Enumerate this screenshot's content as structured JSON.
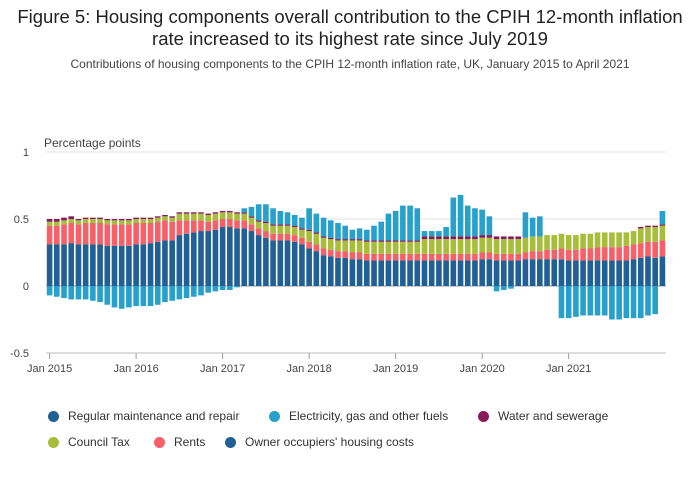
{
  "title": "Figure 5: Housing components overall contribution to the CPIH 12-month inflation rate increased to its highest rate since July 2019",
  "subtitle": "Contributions of housing components to the CPIH 12-month inflation rate, UK, January 2015 to April 2021",
  "chart_data": {
    "type": "bar",
    "stacked": true,
    "ylabel": "Percentage points",
    "ylim": [
      -0.5,
      1
    ],
    "yticks": [
      "1",
      "0.5",
      "0",
      "-0.5"
    ],
    "xtick_labels": [
      "Jan 2015",
      "Jan 2016",
      "Jan 2017",
      "Jan 2018",
      "Jan 2019",
      "Jan 2020",
      "Jan 2021"
    ],
    "period_start": "2015-01",
    "period_end": "2021-04",
    "grid": true,
    "legend_position": "bottom",
    "series": [
      {
        "name": "Owner occupiers' housing costs",
        "color": "#206095",
        "values": [
          0.31,
          0.31,
          0.31,
          0.32,
          0.31,
          0.31,
          0.31,
          0.31,
          0.3,
          0.3,
          0.3,
          0.3,
          0.31,
          0.31,
          0.32,
          0.33,
          0.34,
          0.34,
          0.38,
          0.39,
          0.4,
          0.41,
          0.41,
          0.42,
          0.44,
          0.44,
          0.43,
          0.43,
          0.41,
          0.38,
          0.36,
          0.34,
          0.34,
          0.34,
          0.33,
          0.31,
          0.28,
          0.26,
          0.23,
          0.22,
          0.21,
          0.21,
          0.2,
          0.2,
          0.19,
          0.19,
          0.19,
          0.19,
          0.19,
          0.19,
          0.19,
          0.19,
          0.19,
          0.19,
          0.19,
          0.19,
          0.19,
          0.19,
          0.19,
          0.19,
          0.2,
          0.2,
          0.19,
          0.19,
          0.19,
          0.19,
          0.2,
          0.2,
          0.2,
          0.2,
          0.2,
          0.2,
          0.19,
          0.19,
          0.19,
          0.19,
          0.19,
          0.19,
          0.19,
          0.19,
          0.19,
          0.2,
          0.21,
          0.22,
          0.21,
          0.22
        ]
      },
      {
        "name": "Rents",
        "color": "#f66068",
        "values": [
          0.14,
          0.14,
          0.15,
          0.15,
          0.15,
          0.16,
          0.16,
          0.16,
          0.16,
          0.16,
          0.16,
          0.16,
          0.16,
          0.16,
          0.15,
          0.15,
          0.15,
          0.14,
          0.11,
          0.1,
          0.09,
          0.08,
          0.07,
          0.07,
          0.06,
          0.06,
          0.06,
          0.06,
          0.05,
          0.05,
          0.05,
          0.05,
          0.05,
          0.05,
          0.05,
          0.05,
          0.05,
          0.05,
          0.05,
          0.05,
          0.05,
          0.05,
          0.05,
          0.05,
          0.05,
          0.05,
          0.05,
          0.05,
          0.05,
          0.05,
          0.05,
          0.05,
          0.05,
          0.05,
          0.05,
          0.05,
          0.05,
          0.05,
          0.05,
          0.05,
          0.05,
          0.05,
          0.05,
          0.05,
          0.05,
          0.05,
          0.05,
          0.06,
          0.06,
          0.07,
          0.07,
          0.08,
          0.08,
          0.08,
          0.09,
          0.09,
          0.1,
          0.1,
          0.1,
          0.1,
          0.11,
          0.11,
          0.11,
          0.11,
          0.12,
          0.12
        ]
      },
      {
        "name": "Council Tax",
        "color": "#a8bd3a",
        "values": [
          0.03,
          0.03,
          0.03,
          0.03,
          0.03,
          0.03,
          0.03,
          0.03,
          0.03,
          0.03,
          0.03,
          0.03,
          0.03,
          0.03,
          0.03,
          0.03,
          0.03,
          0.03,
          0.05,
          0.05,
          0.05,
          0.05,
          0.05,
          0.05,
          0.05,
          0.05,
          0.05,
          0.05,
          0.05,
          0.05,
          0.06,
          0.06,
          0.06,
          0.06,
          0.06,
          0.06,
          0.08,
          0.08,
          0.08,
          0.08,
          0.08,
          0.08,
          0.09,
          0.09,
          0.09,
          0.09,
          0.09,
          0.09,
          0.09,
          0.09,
          0.09,
          0.09,
          0.11,
          0.11,
          0.11,
          0.11,
          0.11,
          0.11,
          0.11,
          0.11,
          0.11,
          0.11,
          0.11,
          0.11,
          0.11,
          0.11,
          0.11,
          0.11,
          0.11,
          0.11,
          0.11,
          0.11,
          0.11,
          0.11,
          0.11,
          0.11,
          0.11,
          0.11,
          0.11,
          0.11,
          0.1,
          0.1,
          0.11,
          0.11,
          0.11,
          0.11
        ]
      },
      {
        "name": "Water and sewerage",
        "color": "#871a5b",
        "values": [
          0.02,
          0.02,
          0.02,
          0.02,
          0.01,
          0.01,
          0.01,
          0.01,
          0.01,
          0.01,
          0.01,
          0.01,
          0.01,
          0.01,
          0.01,
          0.01,
          0.01,
          0.01,
          0.01,
          0.01,
          0.01,
          0.01,
          0.01,
          0.01,
          0.01,
          0.01,
          0.01,
          0.01,
          0.01,
          0.01,
          0.01,
          0.01,
          0.01,
          0.01,
          0.01,
          0.01,
          0.01,
          0.01,
          0.01,
          0.01,
          0.01,
          0.01,
          0.01,
          0.01,
          0.01,
          0.01,
          0.01,
          0.01,
          0.01,
          0.01,
          0.01,
          0.01,
          0.02,
          0.02,
          0.02,
          0.02,
          0.02,
          0.02,
          0.02,
          0.02,
          0.02,
          0.02,
          0.02,
          0.02,
          0.02,
          0.02,
          0.0,
          0.0,
          0.0,
          0.0,
          0.0,
          0.0,
          0.0,
          0.0,
          0.0,
          0.0,
          0.0,
          0.0,
          0.0,
          0.0,
          0.0,
          0.0,
          0.01,
          0.01,
          0.01,
          0.01
        ]
      },
      {
        "name": "Electricity, gas and other fuels",
        "color": "#27a0cc",
        "values": [
          -0.07,
          -0.08,
          -0.09,
          -0.1,
          -0.1,
          -0.1,
          -0.11,
          -0.12,
          -0.14,
          -0.16,
          -0.17,
          -0.16,
          -0.15,
          -0.15,
          -0.15,
          -0.14,
          -0.12,
          -0.11,
          -0.1,
          -0.09,
          -0.08,
          -0.07,
          -0.05,
          -0.04,
          -0.03,
          -0.03,
          -0.01,
          0.03,
          0.07,
          0.12,
          0.13,
          0.12,
          0.1,
          0.09,
          0.08,
          0.08,
          0.16,
          0.14,
          0.14,
          0.13,
          0.12,
          0.1,
          0.07,
          0.08,
          0.08,
          0.11,
          0.14,
          0.2,
          0.22,
          0.26,
          0.26,
          0.24,
          0.04,
          0.04,
          0.04,
          0.07,
          0.29,
          0.31,
          0.23,
          0.21,
          0.19,
          0.14,
          -0.04,
          -0.03,
          -0.02,
          0.0,
          0.19,
          0.14,
          0.15,
          0.0,
          0.0,
          -0.24,
          -0.24,
          -0.23,
          -0.22,
          -0.22,
          -0.22,
          -0.22,
          -0.25,
          -0.25,
          -0.24,
          -0.24,
          -0.24,
          -0.22,
          -0.21,
          0.1
        ]
      }
    ]
  },
  "legend": {
    "items": [
      {
        "label": "Regular maintenance and repair",
        "color": "#206095"
      },
      {
        "label": "Electricity, gas and other fuels",
        "color": "#27a0cc"
      },
      {
        "label": "Water and sewerage",
        "color": "#871a5b"
      },
      {
        "label": "Council Tax",
        "color": "#a8bd3a"
      },
      {
        "label": "Rents",
        "color": "#f66068"
      },
      {
        "label": "Owner occupiers' housing costs",
        "color": "#206095"
      }
    ]
  }
}
